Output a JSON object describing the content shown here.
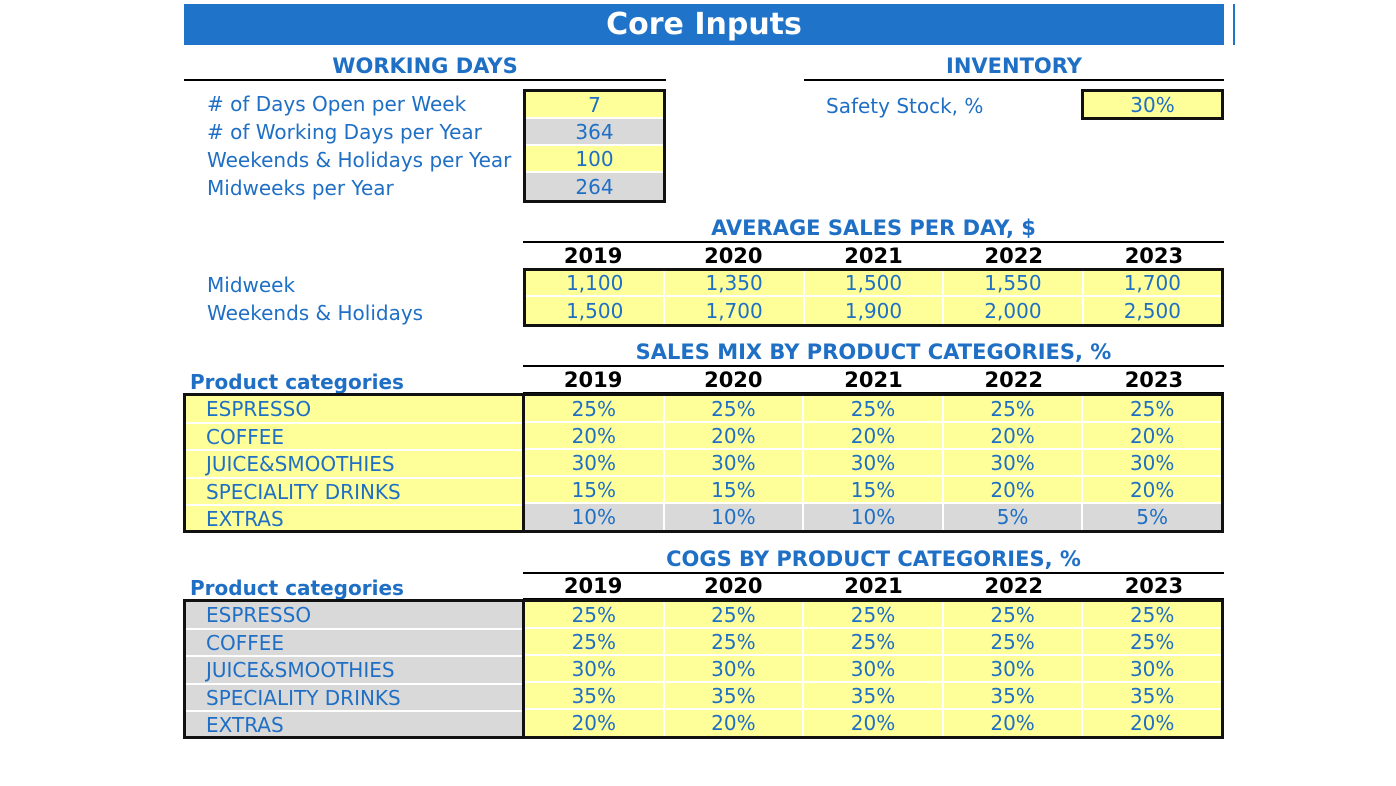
{
  "title": "Core Inputs",
  "working_days": {
    "heading": "WORKING DAYS",
    "items": [
      {
        "label": "# of Days Open per Week",
        "value": "7",
        "style": "yellow"
      },
      {
        "label": "# of Working Days per Year",
        "value": "364",
        "style": "grey"
      },
      {
        "label": "Weekends & Holidays per Year",
        "value": "100",
        "style": "yellow"
      },
      {
        "label": "Midweeks per Year",
        "value": "264",
        "style": "grey"
      }
    ]
  },
  "inventory": {
    "heading": "INVENTORY",
    "label": "Safety Stock, %",
    "value": "30%"
  },
  "years": [
    "2019",
    "2020",
    "2021",
    "2022",
    "2023"
  ],
  "avg_sales": {
    "heading": "AVERAGE SALES PER DAY, $",
    "rows": [
      {
        "label": "Midweek",
        "values": [
          "1,100",
          "1,350",
          "1,500",
          "1,550",
          "1,700"
        ]
      },
      {
        "label": "Weekends & Holidays",
        "values": [
          "1,500",
          "1,700",
          "1,900",
          "2,000",
          "2,500"
        ]
      }
    ]
  },
  "sales_mix": {
    "heading": "SALES MIX BY PRODUCT CATEGORIES, %",
    "col_label": "Product categories",
    "rows": [
      {
        "label": "ESPRESSO",
        "values": [
          "25%",
          "25%",
          "25%",
          "25%",
          "25%"
        ],
        "style": "yellow"
      },
      {
        "label": "COFFEE",
        "values": [
          "20%",
          "20%",
          "20%",
          "20%",
          "20%"
        ],
        "style": "yellow"
      },
      {
        "label": "JUICE&SMOOTHIES",
        "values": [
          "30%",
          "30%",
          "30%",
          "30%",
          "30%"
        ],
        "style": "yellow"
      },
      {
        "label": "SPECIALITY DRINKS",
        "values": [
          "15%",
          "15%",
          "15%",
          "20%",
          "20%"
        ],
        "style": "yellow"
      },
      {
        "label": "EXTRAS",
        "values": [
          "10%",
          "10%",
          "10%",
          "5%",
          "5%"
        ],
        "style": "grey"
      }
    ]
  },
  "cogs": {
    "heading": "COGS BY PRODUCT CATEGORIES, %",
    "col_label": "Product categories",
    "rows": [
      {
        "label": "ESPRESSO",
        "values": [
          "25%",
          "25%",
          "25%",
          "25%",
          "25%"
        ]
      },
      {
        "label": "COFFEE",
        "values": [
          "25%",
          "25%",
          "25%",
          "25%",
          "25%"
        ]
      },
      {
        "label": "JUICE&SMOOTHIES",
        "values": [
          "30%",
          "30%",
          "30%",
          "30%",
          "30%"
        ]
      },
      {
        "label": "SPECIALITY DRINKS",
        "values": [
          "35%",
          "35%",
          "35%",
          "35%",
          "35%"
        ]
      },
      {
        "label": "EXTRAS",
        "values": [
          "20%",
          "20%",
          "20%",
          "20%",
          "20%"
        ]
      }
    ]
  },
  "colors": {
    "banner": "#1F73C8",
    "input_yellow": "#FFFF99",
    "calc_grey": "#D9D9D9",
    "text_blue": "#1F6FC5"
  }
}
